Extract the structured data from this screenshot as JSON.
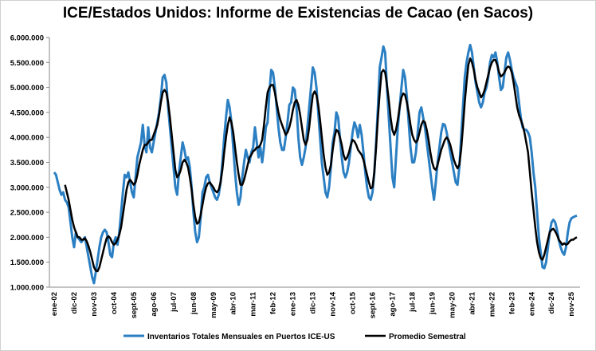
{
  "chart_data": {
    "type": "line",
    "title": "ICE/Estados Unidos: Informe de Existencias de Cacao (en Sacos)",
    "categories": [
      "ene-02",
      null,
      null,
      null,
      null,
      null,
      null,
      null,
      null,
      null,
      null,
      "dic-02",
      null,
      null,
      null,
      null,
      null,
      null,
      null,
      null,
      null,
      null,
      "nov-03",
      null,
      null,
      null,
      null,
      null,
      null,
      null,
      null,
      null,
      null,
      "oct-04",
      null,
      null,
      null,
      null,
      null,
      null,
      null,
      null,
      null,
      null,
      "sept-05",
      null,
      null,
      null,
      null,
      null,
      null,
      null,
      null,
      null,
      null,
      "ago-06",
      null,
      null,
      null,
      null,
      null,
      null,
      null,
      null,
      null,
      null,
      "jul-07",
      null,
      null,
      null,
      null,
      null,
      null,
      null,
      null,
      null,
      null,
      "jun-08",
      null,
      null,
      null,
      null,
      null,
      null,
      null,
      null,
      null,
      null,
      "may-09",
      null,
      null,
      null,
      null,
      null,
      null,
      null,
      null,
      null,
      null,
      "abr-10",
      null,
      null,
      null,
      null,
      null,
      null,
      null,
      null,
      null,
      null,
      "mar-11",
      null,
      null,
      null,
      null,
      null,
      null,
      null,
      null,
      null,
      null,
      "feb-12",
      null,
      null,
      null,
      null,
      null,
      null,
      null,
      null,
      null,
      null,
      "ene-13",
      null,
      null,
      null,
      null,
      null,
      null,
      null,
      null,
      null,
      null,
      "dic-13",
      null,
      null,
      null,
      null,
      null,
      null,
      null,
      null,
      null,
      null,
      "nov-14",
      null,
      null,
      null,
      null,
      null,
      null,
      null,
      null,
      null,
      null,
      "oct-15",
      null,
      null,
      null,
      null,
      null,
      null,
      null,
      null,
      null,
      null,
      "sept-16",
      null,
      null,
      null,
      null,
      null,
      null,
      null,
      null,
      null,
      null,
      "ago-17",
      null,
      null,
      null,
      null,
      null,
      null,
      null,
      null,
      null,
      null,
      "jul-18",
      null,
      null,
      null,
      null,
      null,
      null,
      null,
      null,
      null,
      null,
      "jun-19",
      null,
      null,
      null,
      null,
      null,
      null,
      null,
      null,
      null,
      null,
      "may-20",
      null,
      null,
      null,
      null,
      null,
      null,
      null,
      null,
      null,
      null,
      "abr-21",
      null,
      null,
      null,
      null,
      null,
      null,
      null,
      null,
      null,
      null,
      "mar-22",
      null,
      null,
      null,
      null,
      null,
      null,
      null,
      null,
      null,
      null,
      "feb-23",
      null,
      null,
      null,
      null,
      null,
      null,
      null,
      null,
      null,
      null,
      "ene-24",
      null,
      null,
      null,
      null,
      null,
      null,
      null,
      null,
      null,
      null,
      "dic-24",
      null,
      null,
      null,
      null,
      null,
      null,
      null,
      null,
      null,
      null,
      "nov-25",
      null,
      null,
      null
    ],
    "series": [
      {
        "name": "Inventarios Totales Mensuales en Puertos ICE-US",
        "color": "#2b7fc3",
        "width": 3,
        "values": [
          3300000,
          3250000,
          3100000,
          2950000,
          2850000,
          2900000,
          2750000,
          2700000,
          2600000,
          2300000,
          2000000,
          1800000,
          2100000,
          2000000,
          1950000,
          1900000,
          1950000,
          2000000,
          1800000,
          1600000,
          1400000,
          1200000,
          1080000,
          1300000,
          1550000,
          1800000,
          2000000,
          2100000,
          2150000,
          2100000,
          1900000,
          1650000,
          1600000,
          1900000,
          2000000,
          1850000,
          2100000,
          2500000,
          2900000,
          3250000,
          3200000,
          3300000,
          3100000,
          2900000,
          2800000,
          3200000,
          3600000,
          3750000,
          3900000,
          4250000,
          3850000,
          3700000,
          4200000,
          3800000,
          3700000,
          3900000,
          4100000,
          4300000,
          4500000,
          4800000,
          5200000,
          5250000,
          5100000,
          4600000,
          4200000,
          3800000,
          3400000,
          3000000,
          2850000,
          3300000,
          3600000,
          3900000,
          3750000,
          3550000,
          3600000,
          3400000,
          3000000,
          2500000,
          2100000,
          1900000,
          2000000,
          2400000,
          2900000,
          3000000,
          3200000,
          3250000,
          3100000,
          3000000,
          2900000,
          2800000,
          2750000,
          2850000,
          3100000,
          3500000,
          4000000,
          4400000,
          4750000,
          4600000,
          4300000,
          3800000,
          3300000,
          2900000,
          2650000,
          2800000,
          3200000,
          3500000,
          3750000,
          3600000,
          3500000,
          3700000,
          3800000,
          4200000,
          3900000,
          3600000,
          3800000,
          3500000,
          3800000,
          4200000,
          4300000,
          4900000,
          5350000,
          5300000,
          5000000,
          4600000,
          4200000,
          3900000,
          3750000,
          3750000,
          4000000,
          4300000,
          4650000,
          4700000,
          5000000,
          4950000,
          4600000,
          4000000,
          3600000,
          3450000,
          3600000,
          3800000,
          4200000,
          4600000,
          5000000,
          5400000,
          5300000,
          5000000,
          4500000,
          4000000,
          3500000,
          3200000,
          2900000,
          2800000,
          3000000,
          3400000,
          3900000,
          4100000,
          4500000,
          4400000,
          4000000,
          3600000,
          3300000,
          3200000,
          3300000,
          3500000,
          3800000,
          4100000,
          4300000,
          4200000,
          4000000,
          4250000,
          4050000,
          3700000,
          3300000,
          3000000,
          2800000,
          2750000,
          2900000,
          3300000,
          3900000,
          4600000,
          5400000,
          5600000,
          5820000,
          5700000,
          5000000,
          4400000,
          3800000,
          3200000,
          3000000,
          3600000,
          4200000,
          4600000,
          5000000,
          5350000,
          5200000,
          4800000,
          4300000,
          3800000,
          3500000,
          3500000,
          3700000,
          4100000,
          4500000,
          4600000,
          4400000,
          4200000,
          3900000,
          3600000,
          3300000,
          3000000,
          2750000,
          3100000,
          3500000,
          3800000,
          4100000,
          4270000,
          4250000,
          4100000,
          3900000,
          3700000,
          3500000,
          3300000,
          3100000,
          3050000,
          3400000,
          4000000,
          4600000,
          5200000,
          5500000,
          5700000,
          5850000,
          5700000,
          5400000,
          5100000,
          4900000,
          4700000,
          4600000,
          4700000,
          4900000,
          5000000,
          5200000,
          5500000,
          5650000,
          5600000,
          5700000,
          5500000,
          5200000,
          4950000,
          5000000,
          5300000,
          5600000,
          5700000,
          5550000,
          5350000,
          5200000,
          5100000,
          5000000,
          4700000,
          4400000,
          4200000,
          4150000,
          4150000,
          4100000,
          4000000,
          3700000,
          3300000,
          3000000,
          2500000,
          2000000,
          1700000,
          1400000,
          1380000,
          1500000,
          1800000,
          2100000,
          2300000,
          2350000,
          2300000,
          2150000,
          1950000,
          1800000,
          1700000,
          1650000,
          1800000,
          2100000,
          2300000,
          2380000,
          2400000,
          2420000,
          2430000
        ]
      },
      {
        "name": "Promedio Semestral",
        "color": "#000000",
        "width": 2.5,
        "values": [
          null,
          null,
          null,
          null,
          null,
          null,
          3050000,
          2900000,
          2750000,
          2550000,
          2350000,
          2200000,
          2100000,
          2000000,
          2000000,
          1950000,
          1950000,
          1980000,
          1920000,
          1820000,
          1700000,
          1550000,
          1400000,
          1330000,
          1320000,
          1400000,
          1550000,
          1700000,
          1850000,
          1980000,
          2020000,
          1980000,
          1900000,
          1850000,
          1880000,
          1950000,
          2050000,
          2200000,
          2450000,
          2700000,
          2950000,
          3100000,
          3150000,
          3100000,
          3050000,
          3100000,
          3250000,
          3450000,
          3600000,
          3750000,
          3850000,
          3850000,
          3900000,
          3950000,
          3950000,
          4050000,
          4150000,
          4250000,
          4450000,
          4700000,
          4900000,
          4950000,
          4900000,
          4700000,
          4400000,
          4050000,
          3700000,
          3350000,
          3200000,
          3250000,
          3350000,
          3500000,
          3550000,
          3500000,
          3400000,
          3200000,
          2950000,
          2650000,
          2400000,
          2270000,
          2300000,
          2450000,
          2650000,
          2850000,
          3000000,
          3080000,
          3100000,
          3050000,
          3000000,
          2930000,
          2900000,
          2950000,
          3100000,
          3350000,
          3700000,
          4000000,
          4250000,
          4400000,
          4300000,
          4100000,
          3800000,
          3500000,
          3250000,
          3050000,
          3050000,
          3150000,
          3300000,
          3450000,
          3600000,
          3650000,
          3720000,
          3750000,
          3800000,
          3800000,
          3850000,
          3950000,
          4250000,
          4600000,
          4900000,
          5000000,
          5050000,
          5050000,
          4900000,
          4700000,
          4500000,
          4350000,
          4250000,
          4150000,
          4050000,
          4100000,
          4200000,
          4350000,
          4550000,
          4700000,
          4750000,
          4650000,
          4450000,
          4200000,
          3950000,
          3850000,
          3950000,
          4200000,
          4550000,
          4850000,
          4920000,
          4850000,
          4650000,
          4350000,
          4000000,
          3650000,
          3400000,
          3250000,
          3300000,
          3450000,
          3750000,
          4000000,
          4150000,
          4120000,
          4000000,
          3850000,
          3650000,
          3550000,
          3600000,
          3700000,
          3850000,
          3950000,
          3920000,
          3850000,
          3750000,
          3700000,
          3650000,
          3550000,
          3400000,
          3250000,
          3100000,
          2980000,
          3000000,
          3300000,
          3800000,
          4400000,
          4900000,
          5300000,
          5350000,
          5300000,
          5050000,
          4750000,
          4400000,
          4150000,
          4050000,
          4150000,
          4350000,
          4600000,
          4800000,
          4880000,
          4850000,
          4700000,
          4500000,
          4250000,
          4050000,
          3950000,
          3900000,
          3950000,
          4100000,
          4250000,
          4330000,
          4300000,
          4150000,
          3950000,
          3700000,
          3500000,
          3380000,
          3350000,
          3450000,
          3600000,
          3750000,
          3850000,
          3950000,
          4000000,
          3950000,
          3850000,
          3700000,
          3550000,
          3450000,
          3380000,
          3450000,
          3750000,
          4200000,
          4700000,
          5100000,
          5450000,
          5580000,
          5500000,
          5350000,
          5150000,
          5000000,
          4900000,
          4800000,
          4850000,
          4950000,
          5100000,
          5250000,
          5400000,
          5500000,
          5550000,
          5550000,
          5450000,
          5300000,
          5220000,
          5250000,
          5300000,
          5380000,
          5420000,
          5400000,
          5300000,
          5100000,
          4850000,
          4600000,
          4450000,
          4350000,
          4250000,
          4100000,
          3900000,
          3700000,
          3300000,
          2900000,
          2550000,
          2200000,
          1900000,
          1700000,
          1580000,
          1550000,
          1650000,
          1800000,
          1950000,
          2100000,
          2150000,
          2170000,
          2120000,
          2050000,
          1950000,
          1900000,
          1850000,
          1880000,
          1850000,
          1870000,
          1920000,
          1950000,
          1950000,
          1980000,
          2000000
        ]
      }
    ],
    "ylim": [
      1000000,
      6000000
    ],
    "yticks": [
      {
        "value": 1000000,
        "label": "1.000.000"
      },
      {
        "value": 1500000,
        "label": "1.500.000"
      },
      {
        "value": 2000000,
        "label": "2.000.000"
      },
      {
        "value": 2500000,
        "label": "2.500.000"
      },
      {
        "value": 3000000,
        "label": "3.000.000"
      },
      {
        "value": 3500000,
        "label": "3.500.000"
      },
      {
        "value": 4000000,
        "label": "4.000.000"
      },
      {
        "value": 4500000,
        "label": "4.500.000"
      },
      {
        "value": 5000000,
        "label": "5.000.000"
      },
      {
        "value": 5500000,
        "label": "5.500.000"
      },
      {
        "value": 6000000,
        "label": "6.000.000"
      }
    ],
    "grid": false
  }
}
